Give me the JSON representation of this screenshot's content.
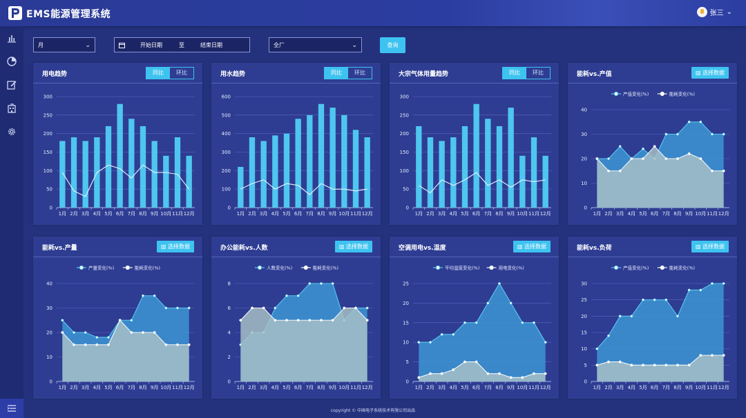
{
  "header": {
    "title": "EMS能源管理系统",
    "user": "张三"
  },
  "filters": {
    "period": "月",
    "start_date": "开始日期",
    "to": "至",
    "end_date": "结束日期",
    "scope": "全厂",
    "query": "查询"
  },
  "footer": {
    "copyright": "copyright © 中国电子系统技术有限公司出品"
  },
  "colors": {
    "bar": "#4fc6f0",
    "area": "#3c95d3",
    "area2": "#a9c2c7",
    "accent": "#3ec3f0"
  },
  "chart_data": [
    {
      "type": "bar",
      "title": "用电趋势",
      "toggle": [
        "同比",
        "环比"
      ],
      "categories": [
        "1月",
        "2月",
        "3月",
        "4月",
        "5月",
        "6月",
        "7月",
        "8月",
        "9月",
        "10月",
        "11月",
        "12月"
      ],
      "values": [
        180,
        190,
        180,
        190,
        220,
        280,
        240,
        220,
        180,
        140,
        190,
        140
      ],
      "line": [
        95,
        45,
        30,
        95,
        115,
        105,
        80,
        115,
        95,
        95,
        90,
        50
      ],
      "ylim": [
        0,
        300
      ],
      "yticks": [
        0,
        50,
        100,
        150,
        200,
        250,
        300
      ]
    },
    {
      "type": "bar",
      "title": "用水趋势",
      "toggle": [
        "同比",
        "环比"
      ],
      "categories": [
        "1月",
        "2月",
        "3月",
        "4月",
        "5月",
        "6月",
        "7月",
        "8月",
        "9月",
        "10月",
        "11月",
        "12月"
      ],
      "values": [
        220,
        380,
        360,
        390,
        400,
        480,
        500,
        560,
        540,
        500,
        420,
        380
      ],
      "line": [
        100,
        130,
        150,
        100,
        130,
        120,
        70,
        130,
        100,
        100,
        90,
        100
      ],
      "ylim": [
        0,
        600
      ],
      "yticks": [
        0,
        100,
        200,
        300,
        400,
        500,
        600
      ]
    },
    {
      "type": "bar",
      "title": "大宗气体用量趋势",
      "toggle": [
        "同比",
        "环比"
      ],
      "categories": [
        "1月",
        "2月",
        "3月",
        "4月",
        "5月",
        "6月",
        "7月",
        "8月",
        "9月",
        "10月",
        "11月",
        "12月"
      ],
      "values": [
        220,
        190,
        180,
        190,
        220,
        280,
        240,
        220,
        270,
        140,
        190,
        140
      ],
      "line": [
        60,
        40,
        75,
        60,
        75,
        95,
        60,
        75,
        55,
        75,
        70,
        75
      ],
      "ylim": [
        0,
        300
      ],
      "yticks": [
        0,
        50,
        100,
        150,
        200,
        250,
        300
      ]
    },
    {
      "type": "area",
      "title": "能耗vs.产值",
      "button": "选择数据",
      "categories": [
        "1月",
        "2月",
        "3月",
        "4月",
        "5月",
        "6月",
        "7月",
        "8月",
        "9月",
        "10月",
        "11月",
        "12月"
      ],
      "series": [
        {
          "name": "产值变化(%)",
          "values": [
            20,
            20,
            25,
            20,
            24,
            20,
            30,
            30,
            35,
            35,
            30,
            30
          ]
        },
        {
          "name": "能耗变化(%)",
          "values": [
            20,
            15,
            15,
            20,
            20,
            25,
            20,
            20,
            22,
            20,
            15,
            15
          ]
        }
      ],
      "ylim": [
        0,
        40
      ],
      "yticks": [
        0,
        10,
        20,
        30,
        40
      ]
    },
    {
      "type": "area",
      "title": "能耗vs.产量",
      "button": "选择数据",
      "categories": [
        "1月",
        "2月",
        "3月",
        "4月",
        "5月",
        "6月",
        "7月",
        "8月",
        "9月",
        "10月",
        "11月",
        "12月"
      ],
      "series": [
        {
          "name": "产量变化(%)",
          "values": [
            25,
            20,
            20,
            18,
            18,
            25,
            25,
            35,
            35,
            30,
            30,
            30
          ]
        },
        {
          "name": "能耗变化(%)",
          "values": [
            20,
            15,
            15,
            15,
            15,
            25,
            20,
            20,
            20,
            15,
            15,
            15
          ]
        }
      ],
      "ylim": [
        0,
        40
      ],
      "yticks": [
        0,
        10,
        20,
        30,
        40
      ]
    },
    {
      "type": "area",
      "title": "办公能耗vs.人数",
      "button": "选择数据",
      "categories": [
        "1月",
        "2月",
        "3月",
        "4月",
        "5月",
        "6月",
        "7月",
        "8月",
        "9月",
        "10月",
        "11月",
        "12月"
      ],
      "series": [
        {
          "name": "人数变化(%)",
          "values": [
            3,
            4,
            4,
            6,
            7,
            7,
            8,
            8,
            8,
            5,
            6,
            6
          ]
        },
        {
          "name": "能耗变化(%)",
          "values": [
            5,
            6,
            6,
            5,
            5,
            5,
            5,
            5,
            5,
            6,
            6,
            5
          ]
        }
      ],
      "ylim": [
        0,
        8
      ],
      "yticks": [
        0,
        2,
        4,
        6,
        8
      ]
    },
    {
      "type": "area",
      "title": "空调用电vs.温度",
      "button": "选择数据",
      "categories": [
        "1月",
        "2月",
        "3月",
        "4月",
        "5月",
        "6月",
        "7月",
        "8月",
        "9月",
        "10月",
        "11月",
        "12月"
      ],
      "series": [
        {
          "name": "平均温度变化(%)",
          "values": [
            10,
            10,
            12,
            12,
            15,
            15,
            20,
            25,
            20,
            15,
            15,
            10
          ]
        },
        {
          "name": "用电变化(%)",
          "values": [
            1,
            2,
            2,
            3,
            5,
            5,
            2,
            2,
            1,
            1,
            2,
            2
          ]
        }
      ],
      "ylim": [
        0,
        25
      ],
      "yticks": [
        0,
        5,
        10,
        15,
        20,
        25
      ]
    },
    {
      "type": "area",
      "title": "能耗vs.负荷",
      "button": "选择数据",
      "categories": [
        "1月",
        "2月",
        "3月",
        "4月",
        "5月",
        "6月",
        "7月",
        "8月",
        "9月",
        "10月",
        "11月",
        "12月"
      ],
      "series": [
        {
          "name": "产值变化(%)",
          "values": [
            10,
            14,
            20,
            20,
            25,
            25,
            25,
            20,
            28,
            28,
            30,
            30
          ]
        },
        {
          "name": "能耗变化(%)",
          "values": [
            5,
            6,
            6,
            5,
            5,
            5,
            5,
            5,
            5,
            8,
            8,
            8
          ]
        }
      ],
      "ylim": [
        0,
        30
      ],
      "yticks": [
        0,
        5,
        10,
        15,
        20,
        25,
        30
      ]
    }
  ]
}
